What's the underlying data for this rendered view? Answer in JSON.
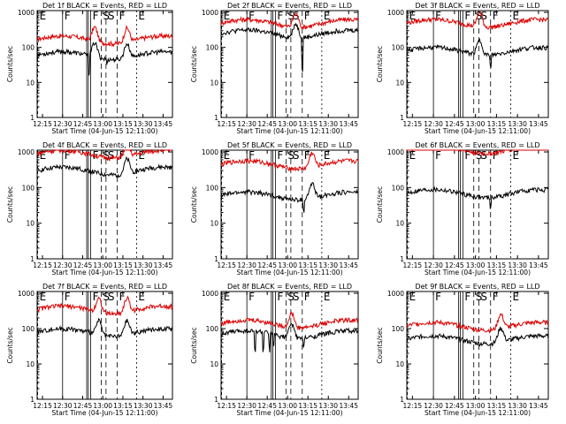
{
  "colors": {
    "events": "#000000",
    "lld": "#dd0000",
    "background": "#ffffff",
    "axis": "#000000"
  },
  "chart_data": [
    {
      "id": 1,
      "type": "line",
      "title": "Det 1f BLACK = Events, RED = LLD",
      "xlabel": "Start Time (04-Jun-15 12:11:00)",
      "ylabel": "Counts/sec",
      "yscale": "log",
      "ylim": [
        1,
        1000
      ],
      "ytick_labels": [
        "1",
        "10",
        "100",
        "1000"
      ],
      "xtick_labels": [
        "12:15",
        "12:30",
        "12:45",
        "13:00",
        "13:15",
        "13:30",
        "13:45"
      ],
      "events_level": 60,
      "lld_level": 170,
      "bumps": [
        12.9,
        13.3
      ],
      "spikes": [
        12.83,
        13.05
      ],
      "markers": [
        "E",
        "F",
        "F",
        "S",
        "S",
        "F",
        "E"
      ]
    },
    {
      "id": 2,
      "type": "line",
      "title": "Det 2f BLACK = Events, RED = LLD",
      "xlabel": "Start Time (04-Jun-15 12:11:00)",
      "ylabel": "Counts/sec",
      "yscale": "log",
      "ylim": [
        1,
        1000
      ],
      "ytick_labels": [
        "1",
        "10",
        "100",
        "1000"
      ],
      "xtick_labels": [
        "12:15",
        "12:30",
        "12:45",
        "13:00",
        "13:15",
        "13:30",
        "13:45"
      ],
      "events_level": 250,
      "lld_level": 500,
      "bumps": [
        13.1
      ],
      "spikes": [
        13.18
      ],
      "markers": [
        "E",
        "F",
        "F",
        "S",
        "S",
        "F",
        "E"
      ]
    },
    {
      "id": 3,
      "type": "line",
      "title": "Det 3f BLACK = Events, RED = LLD",
      "xlabel": "Start Time (04-Jun-15 12:11:00)",
      "ylabel": "Counts/sec",
      "yscale": "log",
      "ylim": [
        1,
        1000
      ],
      "ytick_labels": [
        "1",
        "10",
        "100",
        "1000"
      ],
      "xtick_labels": [
        "12:15",
        "12:30",
        "12:45",
        "13:00",
        "13:15",
        "13:30",
        "13:45"
      ],
      "events_level": 80,
      "lld_level": 500,
      "bumps": [
        13.05
      ],
      "spikes": [
        13.18
      ],
      "markers": [
        "E",
        "F",
        "F",
        "S",
        "S",
        "F",
        "E"
      ]
    },
    {
      "id": 4,
      "type": "line",
      "title": "Det 4f BLACK = Events, RED = LLD",
      "xlabel": "Start Time (04-Jun-15 12:11:00)",
      "ylabel": "Counts/sec",
      "yscale": "log",
      "ylim": [
        1,
        1000
      ],
      "ytick_labels": [
        "1",
        "10",
        "100",
        "1000"
      ],
      "xtick_labels": [
        "12:15",
        "12:30",
        "12:45",
        "13:00",
        "13:15",
        "13:30",
        "13:45"
      ],
      "events_level": 300,
      "lld_level": 900,
      "bumps": [
        13.3
      ],
      "spikes": [],
      "markers": [
        "E",
        "F",
        "F",
        "S",
        "S",
        "F",
        "E"
      ]
    },
    {
      "id": 5,
      "type": "line",
      "title": "Det 5f BLACK = Events, RED = LLD",
      "xlabel": "Start Time (04-Jun-15 12:11:00)",
      "ylabel": "Counts/sec",
      "yscale": "log",
      "ylim": [
        1,
        1000
      ],
      "ytick_labels": [
        "1",
        "10",
        "100",
        "1000"
      ],
      "xtick_labels": [
        "12:15",
        "12:30",
        "12:45",
        "13:00",
        "13:15",
        "13:30",
        "13:45"
      ],
      "events_level": 60,
      "lld_level": 450,
      "bumps": [
        13.3
      ],
      "spikes": [
        13.2
      ],
      "markers": [
        "E",
        "F",
        "F",
        "S",
        "S",
        "F",
        "E"
      ]
    },
    {
      "id": 6,
      "type": "line",
      "title": "Det 6f BLACK = Events, RED = LLD",
      "xlabel": "Start Time (04-Jun-15 12:11:00)",
      "ylabel": "Counts/sec",
      "yscale": "log",
      "ylim": [
        1,
        1000
      ],
      "ytick_labels": [
        "1",
        "10",
        "100",
        "1000"
      ],
      "xtick_labels": [
        "12:15",
        "12:30",
        "12:45",
        "13:00",
        "13:15",
        "13:30",
        "13:45"
      ],
      "events_level": 70,
      "lld_level": 1200,
      "bumps": [],
      "spikes": [
        13.18
      ],
      "markers": [
        "E",
        "F",
        "F",
        "S",
        "S",
        "F",
        "E"
      ]
    },
    {
      "id": 7,
      "type": "line",
      "title": "Det 7f BLACK = Events, RED = LLD",
      "xlabel": "Start Time (04-Jun-15 12:11:00)",
      "ylabel": "Counts/sec",
      "yscale": "log",
      "ylim": [
        1,
        1000
      ],
      "ytick_labels": [
        "1",
        "10",
        "100",
        "1000"
      ],
      "xtick_labels": [
        "12:15",
        "12:30",
        "12:45",
        "13:00",
        "13:15",
        "13:30",
        "13:45"
      ],
      "events_level": 80,
      "lld_level": 350,
      "bumps": [
        12.95,
        13.3
      ],
      "spikes": [],
      "markers": [
        "E",
        "F",
        "F",
        "S",
        "S",
        "F",
        "E"
      ]
    },
    {
      "id": 8,
      "type": "line",
      "title": "Det 8f BLACK = Events, RED = LLD",
      "xlabel": "Start Time (04-Jun-15 12:11:00)",
      "ylabel": "Counts/sec",
      "yscale": "log",
      "ylim": [
        1,
        1000
      ],
      "ytick_labels": [
        "1",
        "10",
        "100",
        "1000"
      ],
      "xtick_labels": [
        "12:15",
        "12:30",
        "12:45",
        "13:00",
        "13:15",
        "13:30",
        "13:45"
      ],
      "events_level": 70,
      "lld_level": 140,
      "bumps": [
        13.05
      ],
      "spikes": [
        12.6,
        12.7,
        12.78,
        12.83,
        13.2
      ],
      "markers": [
        "E",
        "F",
        "F",
        "S",
        "S",
        "F",
        "E"
      ]
    },
    {
      "id": 9,
      "type": "line",
      "title": "Det 9f BLACK = Events, RED = LLD",
      "xlabel": "Start Time (04-Jun-15 12:11:00)",
      "ylabel": "Counts/sec",
      "yscale": "log",
      "ylim": [
        1,
        1000
      ],
      "ytick_labels": [
        "1",
        "10",
        "100",
        "1000"
      ],
      "xtick_labels": [
        "12:15",
        "12:30",
        "12:45",
        "13:00",
        "13:15",
        "13:30",
        "13:45"
      ],
      "events_level": 50,
      "lld_level": 120,
      "bumps": [
        13.3
      ],
      "spikes": [],
      "markers": [
        "E",
        "F",
        "F",
        "S",
        "S",
        "F",
        "E"
      ]
    }
  ]
}
